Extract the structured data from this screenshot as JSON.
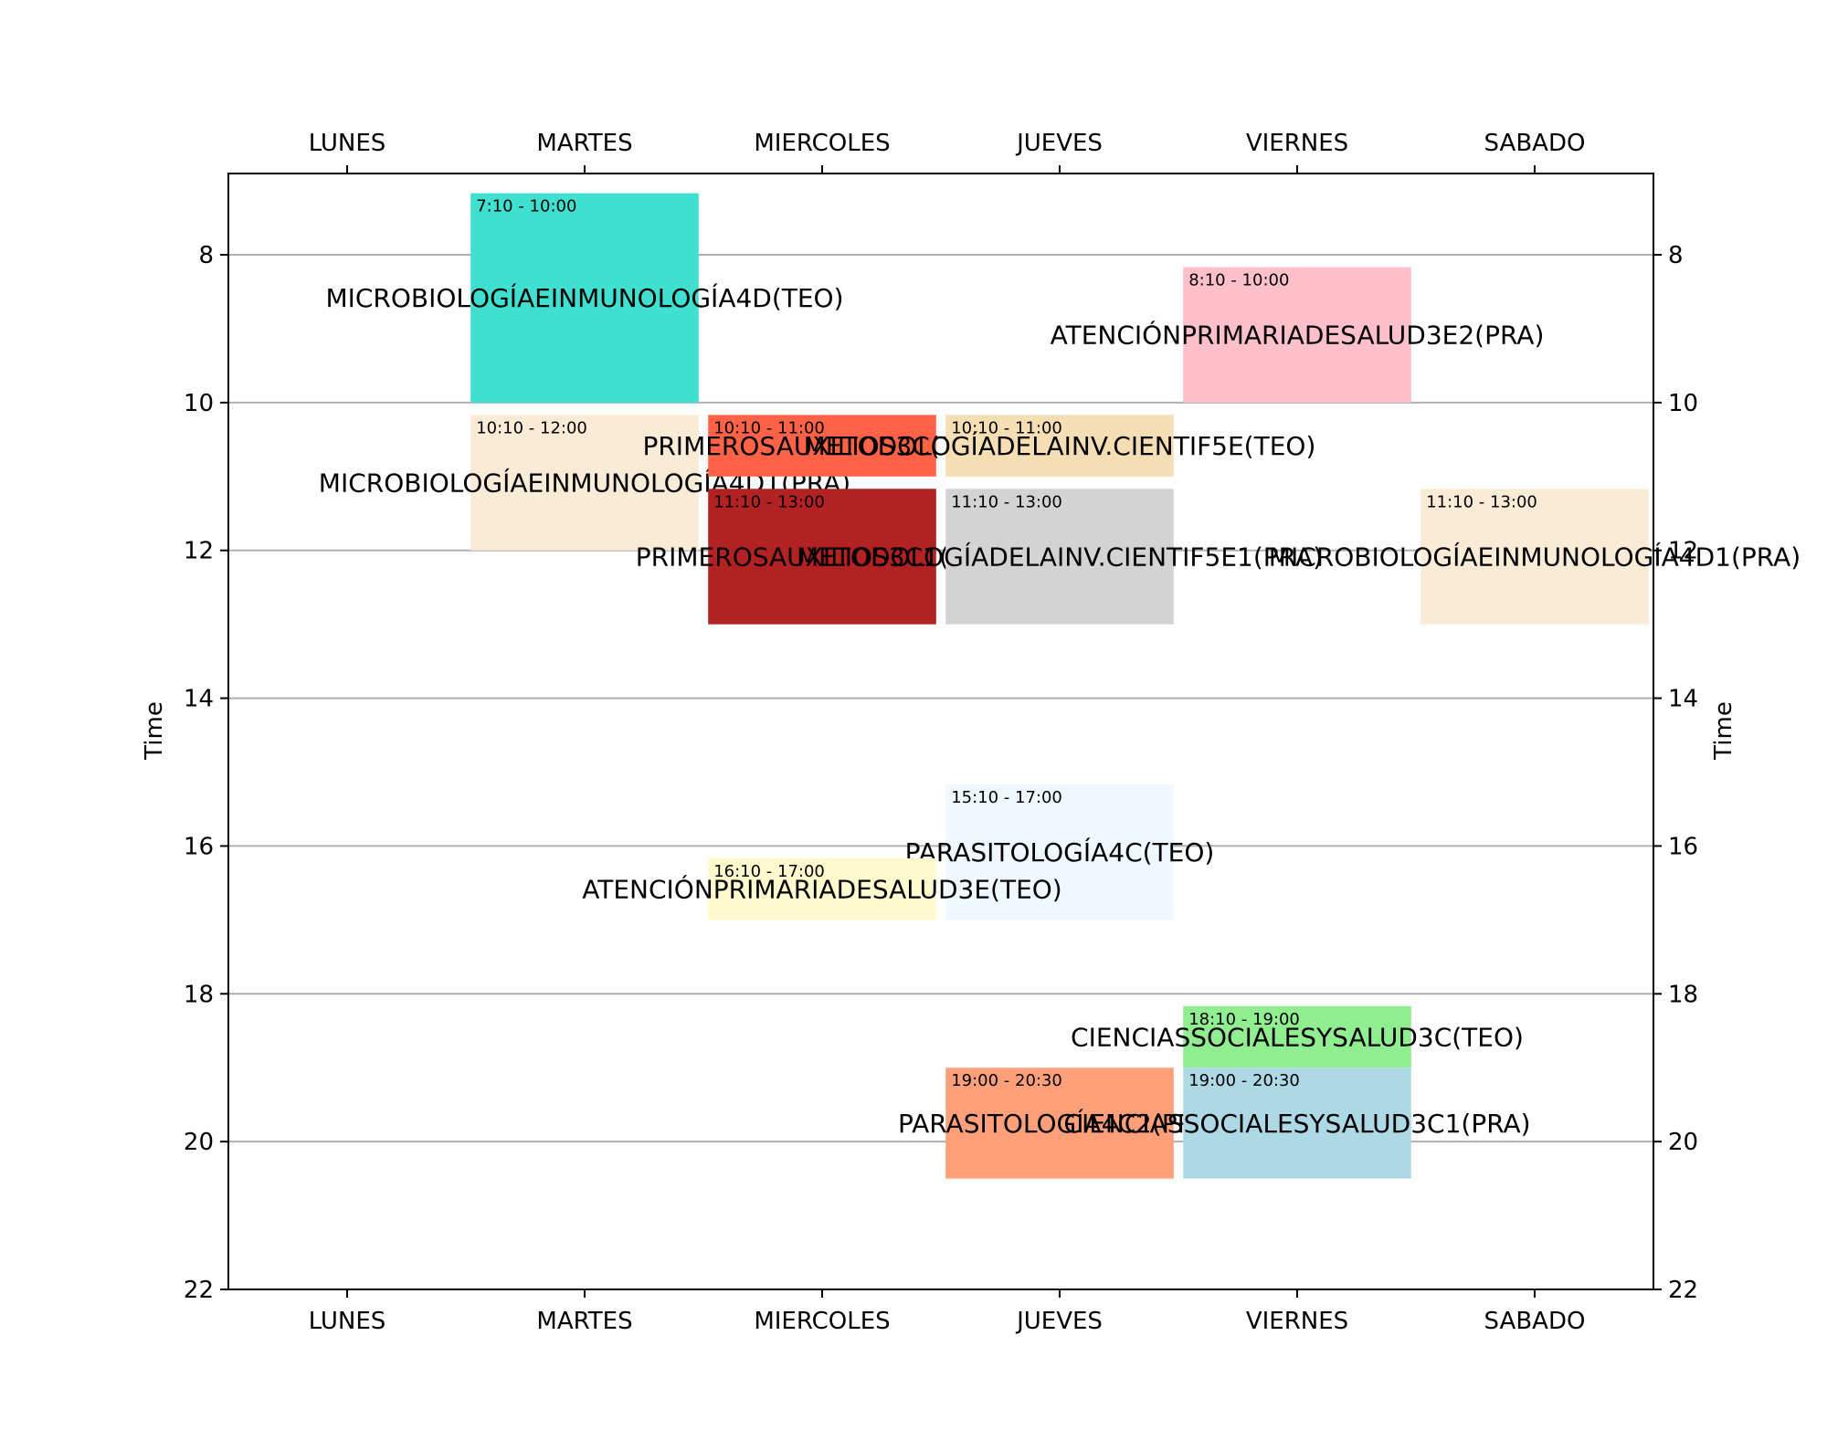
{
  "chart_data": {
    "type": "timetable",
    "ylabel": "Time",
    "days": [
      "LUNES",
      "MARTES",
      "MIERCOLES",
      "JUEVES",
      "VIERNES",
      "SABADO"
    ],
    "ylim": [
      22,
      6.9
    ],
    "yticks": [
      8,
      10,
      12,
      14,
      16,
      18,
      20,
      22
    ],
    "grid": true,
    "events": [
      {
        "day": 1,
        "start": 7.1667,
        "end": 10.0,
        "time": "7:10 - 10:00",
        "label": "MICROBIOLOGÍAEINMUNOLOGÍA4D(TEO)",
        "color": "#40e0d0"
      },
      {
        "day": 1,
        "start": 10.1667,
        "end": 12.0,
        "time": "10:10 - 12:00",
        "label": "MICROBIOLOGÍAEINMUNOLOGÍA4D1(PRA)",
        "color": "#faebd7"
      },
      {
        "day": 2,
        "start": 10.1667,
        "end": 11.0,
        "time": "10:10 - 11:00",
        "label": "PRIMEROSAUXILIOS3C(TEO)",
        "color": "#ff6347"
      },
      {
        "day": 3,
        "start": 10.1667,
        "end": 11.0,
        "time": "10:10 - 11:00",
        "label": "METODOLOGÍADELAINV.CIENTIF5E(TEO)",
        "color": "#f5deb3"
      },
      {
        "day": 2,
        "start": 11.1667,
        "end": 13.0,
        "time": "11:10 - 13:00",
        "label": "PRIMEROSAUXILIOS3C1(PRA)",
        "color": "#b22222"
      },
      {
        "day": 3,
        "start": 11.1667,
        "end": 13.0,
        "time": "11:10 - 13:00",
        "label": "METODOLOGÍADELAINV.CIENTIF5E1(PRA)",
        "color": "#d3d3d3"
      },
      {
        "day": 5,
        "start": 11.1667,
        "end": 13.0,
        "time": "11:10 - 13:00",
        "label": "MICROBIOLOGÍAEINMUNOLOGÍA4D1(PRA)",
        "color": "#faebd7"
      },
      {
        "day": 4,
        "start": 8.1667,
        "end": 10.0,
        "time": "8:10 - 10:00",
        "label": "ATENCIÓNPRIMARIADESALUD3E2(PRA)",
        "color": "#ffc0cb"
      },
      {
        "day": 3,
        "start": 15.1667,
        "end": 17.0,
        "time": "15:10 - 17:00",
        "label": "PARASITOLOGÍA4C(TEO)",
        "color": "#f0f8ff"
      },
      {
        "day": 2,
        "start": 16.1667,
        "end": 17.0,
        "time": "16:10 - 17:00",
        "label": "ATENCIÓNPRIMARIADESALUD3E(TEO)",
        "color": "#fffacd"
      },
      {
        "day": 4,
        "start": 18.1667,
        "end": 19.0,
        "time": "18:10 - 19:00",
        "label": "CIENCIASSOCIALESYSALUD3C(TEO)",
        "color": "#90ee90"
      },
      {
        "day": 3,
        "start": 19.0,
        "end": 20.5,
        "time": "19:00 - 20:30",
        "label": "PARASITOLOGÍA4C2(PRA)",
        "color": "#ffa07a"
      },
      {
        "day": 4,
        "start": 19.0,
        "end": 20.5,
        "time": "19:00 - 20:30",
        "label": "CIENCIASSOCIALESYSALUD3C1(PRA)",
        "color": "#add8e6"
      }
    ]
  }
}
